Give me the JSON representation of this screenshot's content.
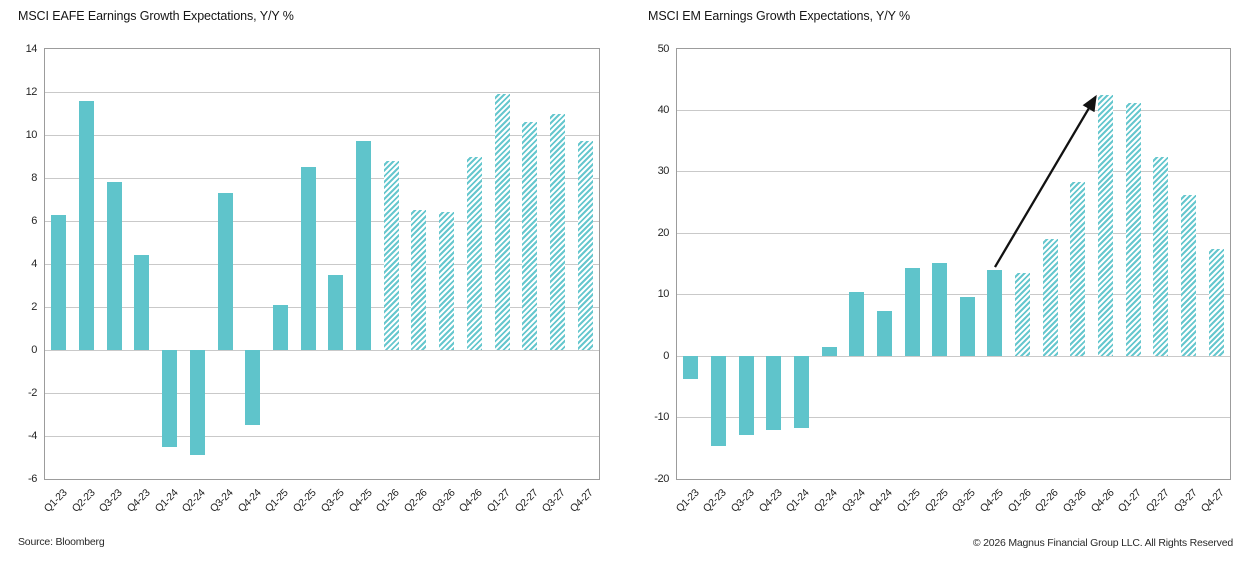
{
  "page": {
    "footer_left": "Source: Bloomberg",
    "footer_right": "© 2026 Magnus Financial Group LLC. All Rights Reserved"
  },
  "colors": {
    "bar_teal": "#5fc4cb",
    "hatch_teal": "#66c7ce",
    "gridline": "#c9c9c9",
    "plot_border": "#9c9c9c",
    "arrow": "#121212",
    "text": "#161616"
  },
  "chart_data": [
    {
      "type": "bar",
      "title": "MSCI EAFE Earnings Growth Expectations, Y/Y %",
      "xlabel": "",
      "ylabel": "",
      "grid": true,
      "legend": "none",
      "ylim": [
        -6,
        14
      ],
      "ytick_step": 2,
      "categories": [
        "Q1-23",
        "Q2-23",
        "Q3-23",
        "Q4-23",
        "Q1-24",
        "Q2-24",
        "Q3-24",
        "Q4-24",
        "Q1-25",
        "Q2-25",
        "Q3-25",
        "Q4-25",
        "Q1-26",
        "Q2-26",
        "Q3-26",
        "Q4-26",
        "Q1-27",
        "Q2-27",
        "Q3-27",
        "Q4-27"
      ],
      "values": [
        6.3,
        11.6,
        7.8,
        4.4,
        -4.5,
        -4.9,
        7.3,
        -3.5,
        2.1,
        8.5,
        3.5,
        9.7,
        8.8,
        6.5,
        6.4,
        9.0,
        11.9,
        10.6,
        11.0,
        9.7
      ],
      "forecast_start_index": 12,
      "forecast_style": "diagonal-hatch"
    },
    {
      "type": "bar",
      "title": "MSCI EM Earnings Growth Expectations, Y/Y %",
      "xlabel": "",
      "ylabel": "",
      "grid": true,
      "legend": "none",
      "ylim": [
        -20,
        50
      ],
      "ytick_step": 10,
      "categories": [
        "Q1-23",
        "Q2-23",
        "Q3-23",
        "Q4-23",
        "Q1-24",
        "Q2-24",
        "Q3-24",
        "Q4-24",
        "Q1-25",
        "Q2-25",
        "Q3-25",
        "Q4-25",
        "Q1-26",
        "Q2-26",
        "Q3-26",
        "Q4-26",
        "Q1-27",
        "Q2-27",
        "Q3-27",
        "Q4-27"
      ],
      "values": [
        -3.7,
        -14.7,
        -12.9,
        -12.1,
        -11.7,
        1.5,
        10.5,
        7.4,
        14.3,
        15.1,
        9.6,
        14.0,
        13.5,
        19.1,
        28.3,
        42.5,
        41.2,
        32.4,
        26.2,
        17.5
      ],
      "forecast_start_index": 12,
      "forecast_style": "diagonal-hatch",
      "annotation_arrow": {
        "from_category": "Q4-25",
        "from_value": 14.5,
        "to_category": "Q4-26",
        "to_value": 42.2
      }
    }
  ]
}
